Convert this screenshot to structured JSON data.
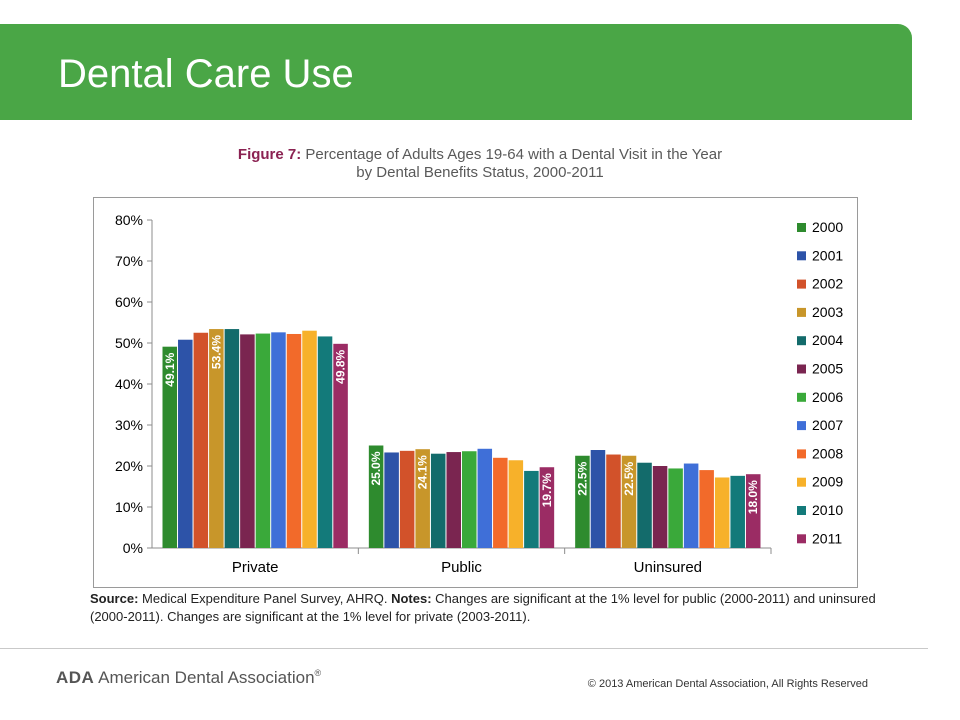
{
  "slide": {
    "title": "Dental Care Use",
    "header_color": "#4aa646"
  },
  "figure": {
    "label": "Figure 7:",
    "title_line1": "Percentage of Adults Ages 19-64 with a Dental Visit in the Year",
    "title_line2": "by Dental Benefits Status, 2000-2011",
    "label_color": "#8b2252"
  },
  "chart_data": {
    "type": "bar",
    "categories": [
      "Private",
      "Public",
      "Uninsured"
    ],
    "series": [
      {
        "name": "2000",
        "color": "#2e8b2e",
        "values": [
          49.1,
          25.0,
          22.5
        ]
      },
      {
        "name": "2001",
        "color": "#2d53a8",
        "values": [
          50.8,
          23.3,
          23.9
        ]
      },
      {
        "name": "2002",
        "color": "#d2522a",
        "values": [
          52.5,
          23.7,
          22.8
        ]
      },
      {
        "name": "2003",
        "color": "#c8962a",
        "values": [
          53.4,
          24.1,
          22.5
        ]
      },
      {
        "name": "2004",
        "color": "#136b6b",
        "values": [
          53.4,
          23.0,
          20.8
        ]
      },
      {
        "name": "2005",
        "color": "#7a2550",
        "values": [
          52.1,
          23.4,
          20.0
        ]
      },
      {
        "name": "2006",
        "color": "#3aa93a",
        "values": [
          52.3,
          23.6,
          19.4
        ]
      },
      {
        "name": "2007",
        "color": "#3f6fd8",
        "values": [
          52.6,
          24.2,
          20.6
        ]
      },
      {
        "name": "2008",
        "color": "#f26a2a",
        "values": [
          52.2,
          22.0,
          19.0
        ]
      },
      {
        "name": "2009",
        "color": "#f7b12a",
        "values": [
          53.0,
          21.4,
          17.2
        ]
      },
      {
        "name": "2010",
        "color": "#137a7a",
        "values": [
          51.6,
          18.8,
          17.6
        ]
      },
      {
        "name": "2011",
        "color": "#9b2c64",
        "values": [
          49.8,
          19.7,
          18.0
        ]
      }
    ],
    "data_labels": [
      {
        "category": "Private",
        "series": "2000",
        "text": "49.1%"
      },
      {
        "category": "Private",
        "series": "2003",
        "text": "53.4%"
      },
      {
        "category": "Private",
        "series": "2011",
        "text": "49.8%"
      },
      {
        "category": "Public",
        "series": "2000",
        "text": "25.0%"
      },
      {
        "category": "Public",
        "series": "2003",
        "text": "24.1%"
      },
      {
        "category": "Public",
        "series": "2011",
        "text": "19.7%"
      },
      {
        "category": "Uninsured",
        "series": "2000",
        "text": "22.5%"
      },
      {
        "category": "Uninsured",
        "series": "2003",
        "text": "22.5%"
      },
      {
        "category": "Uninsured",
        "series": "2011",
        "text": "18.0%"
      }
    ],
    "yticks": [
      "0%",
      "10%",
      "20%",
      "30%",
      "40%",
      "50%",
      "60%",
      "70%",
      "80%"
    ],
    "ylim": [
      0,
      80
    ],
    "grid": false,
    "legend": "right",
    "title": "",
    "xlabel": "",
    "ylabel": ""
  },
  "source": {
    "label1": "Source:",
    "text1": "Medical Expenditure Panel Survey, AHRQ.",
    "label2": "Notes:",
    "text2": "Changes are significant at the 1% level for public (2000-2011) and uninsured (2000-2011). Changes are significant at the 1% level for private (2003-2011)."
  },
  "footer": {
    "logo_mark": "ADA",
    "logo_text": "American Dental Association",
    "logo_reg": "®",
    "copyright": "© 2013 American Dental Association, All Rights Reserved"
  }
}
